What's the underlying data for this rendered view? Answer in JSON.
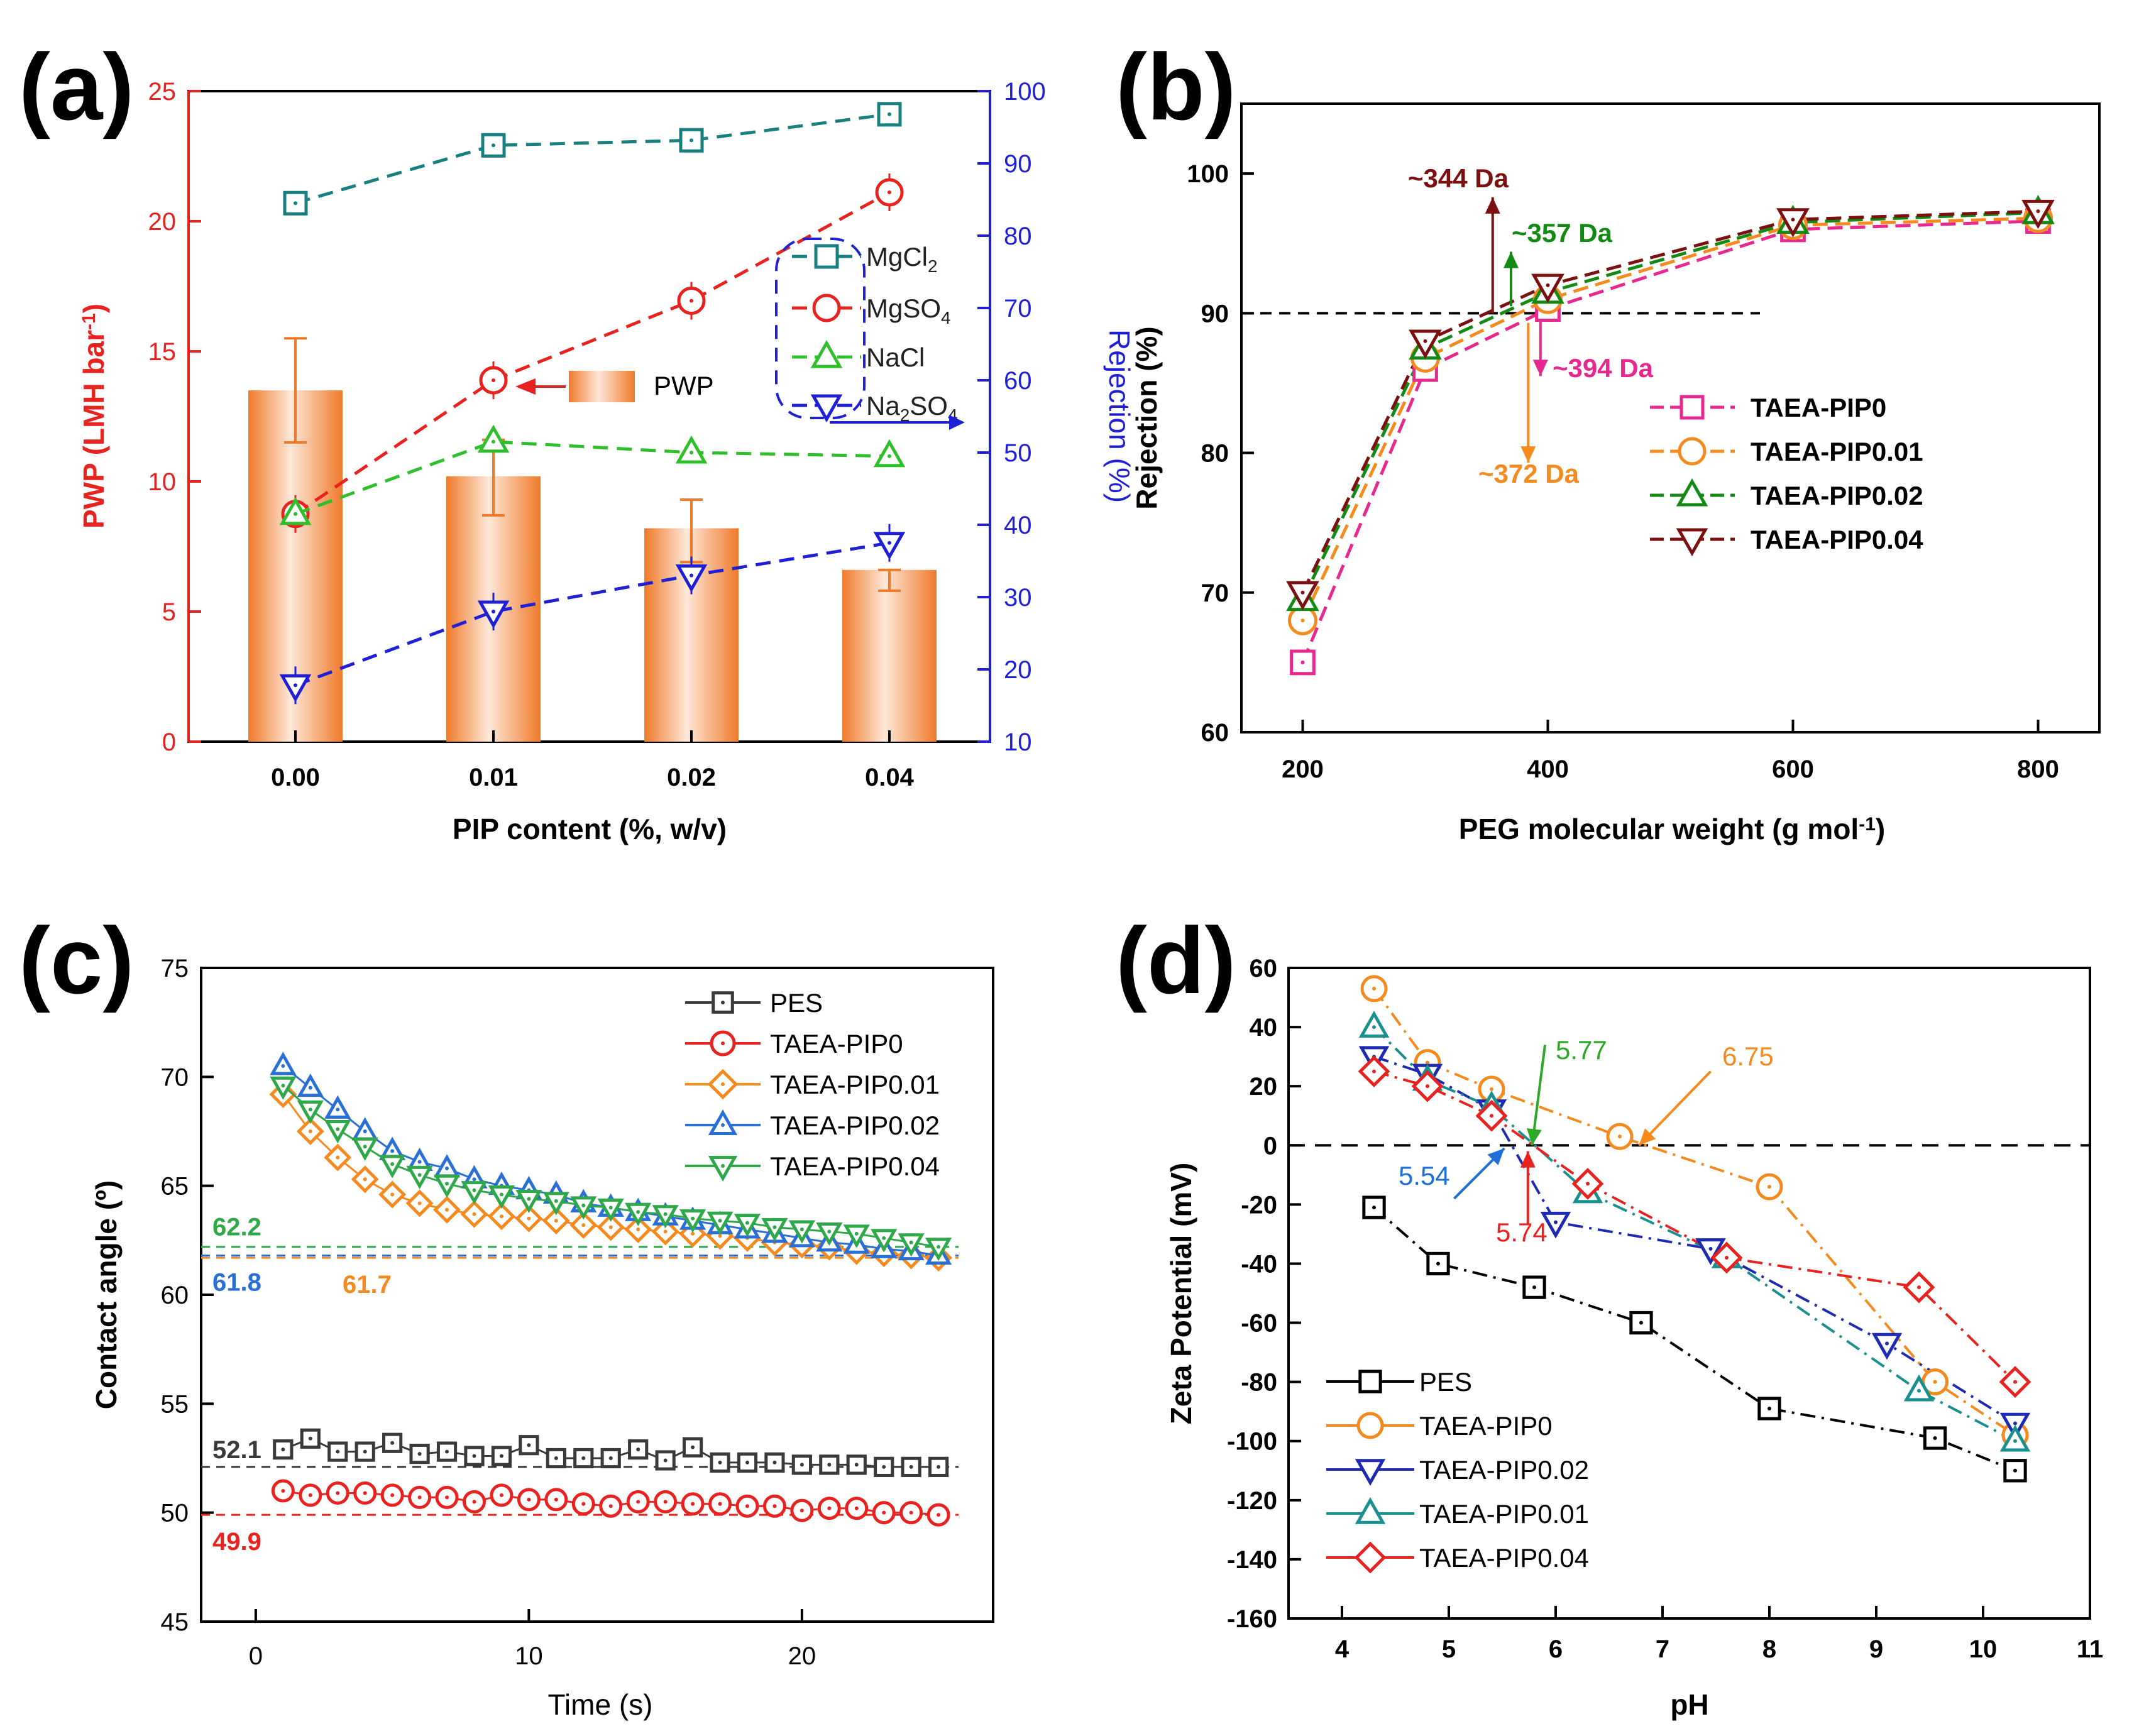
{
  "colors": {
    "black": "#000000",
    "red": "#e8221f",
    "blue": "#1f1fd6",
    "teal": "#1a7f7f",
    "green": "#2fbf2a",
    "orange": "#f58a1f",
    "bar": "#f29a5c",
    "pink": "#e6298f",
    "darkgreen": "#138a13",
    "maroon": "#7a1010",
    "gray": "#3a3a3a",
    "zblue": "#1e2bb0",
    "ablue": "#2a6fd6"
  },
  "chart_data": [
    {
      "panel": "(a)",
      "type": "bar",
      "categories": [
        "0.00",
        "0.01",
        "0.02",
        "0.04"
      ],
      "xlabel": "PIP content (%, w/v)",
      "ylabel": "PWP (LMH bar",
      "ylabel_sup": "-1",
      "ylabel_close": ")",
      "y2label": "Rejection (%)",
      "ylim": [
        0,
        25
      ],
      "yticks": [
        "0",
        "5",
        "10",
        "15",
        "20",
        "25"
      ],
      "y2lim": [
        10,
        100
      ],
      "y2ticks": [
        "10",
        "20",
        "30",
        "40",
        "50",
        "60",
        "70",
        "80",
        "90",
        "100"
      ],
      "bars": {
        "name": "PWP",
        "values": [
          13.5,
          10.2,
          8.2,
          6.6
        ],
        "error_low": [
          11.5,
          8.7,
          6.9,
          5.8
        ],
        "error_high": [
          15.5,
          11.6,
          9.3,
          6.6
        ]
      },
      "series": [
        {
          "name": "MgCl",
          "sub": "2",
          "marker": "square",
          "color": "#1a7f7f",
          "values": [
            84.5,
            92.5,
            93.2,
            96.8
          ]
        },
        {
          "name": "MgSO",
          "sub": "4",
          "marker": "circle",
          "color": "#e8221f",
          "values": [
            41.5,
            60.0,
            71.0,
            86.0
          ]
        },
        {
          "name": "NaCl",
          "sub": "",
          "marker": "triangle-up",
          "color": "#2fbf2a",
          "values": [
            41.5,
            51.5,
            50.0,
            49.5
          ]
        },
        {
          "name": "Na",
          "sub": "2",
          "tail": "SO",
          "tail_sub": "4",
          "marker": "triangle-down",
          "color": "#1f1fd6",
          "values": [
            17.8,
            28.0,
            33.0,
            37.5
          ]
        }
      ]
    },
    {
      "panel": "(b)",
      "type": "line",
      "x": [
        200,
        300,
        400,
        600,
        800
      ],
      "xticks": [
        "200",
        "400",
        "600",
        "800"
      ],
      "xlabel": "PEG molecular weight (g mol",
      "xlabel_sup": "-1",
      "xlabel_close": ")",
      "ylabel": "Rejection (%)",
      "xlim": [
        150,
        850
      ],
      "ylim": [
        60,
        105
      ],
      "yticks": [
        "60",
        "70",
        "80",
        "90",
        "100"
      ],
      "reference_line": 90,
      "series": [
        {
          "name": "TAEA-PIP0",
          "marker": "square",
          "color": "#e6298f",
          "values": [
            65.0,
            86.0,
            90.3,
            96.0,
            96.6
          ]
        },
        {
          "name": "TAEA-PIP0.01",
          "marker": "circle",
          "color": "#f58a1f",
          "values": [
            68.0,
            86.8,
            91.0,
            96.3,
            96.8
          ]
        },
        {
          "name": "TAEA-PIP0.02",
          "marker": "triangle-up",
          "color": "#138a13",
          "values": [
            69.5,
            87.5,
            91.5,
            96.5,
            97.2
          ]
        },
        {
          "name": "TAEA-PIP0.04",
          "marker": "triangle-down",
          "color": "#7a1010",
          "values": [
            70.0,
            88.0,
            92.0,
            96.7,
            97.3
          ]
        }
      ],
      "annotations": [
        {
          "text": "~344 Da",
          "color": "#7a1010",
          "x": 344
        },
        {
          "text": "~357 Da",
          "color": "#138a13",
          "x": 357
        },
        {
          "text": "~394 Da",
          "color": "#e6298f",
          "x": 394
        },
        {
          "text": "~372 Da",
          "color": "#f58a1f",
          "x": 372
        }
      ]
    },
    {
      "panel": "(c)",
      "type": "line",
      "xlabel": "Time (s)",
      "ylabel": "Contact angle (º)",
      "xlim": [
        -2,
        27
      ],
      "xticks": [
        "0",
        "10",
        "20"
      ],
      "ylim": [
        45,
        75
      ],
      "yticks": [
        "45",
        "50",
        "55",
        "60",
        "65",
        "70",
        "75"
      ],
      "series": [
        {
          "name": "PES",
          "marker": "square",
          "color": "#3a3a3a",
          "x": [
            1,
            2,
            3,
            4,
            5,
            6,
            7,
            8,
            9,
            10,
            11,
            12,
            13,
            14,
            15,
            16,
            17,
            18,
            19,
            20,
            21,
            22,
            23,
            24,
            25
          ],
          "values": [
            52.9,
            53.4,
            52.8,
            52.8,
            53.2,
            52.7,
            52.8,
            52.6,
            52.6,
            53.1,
            52.5,
            52.5,
            52.5,
            52.9,
            52.4,
            53.0,
            52.3,
            52.3,
            52.3,
            52.2,
            52.2,
            52.2,
            52.1,
            52.1,
            52.1
          ]
        },
        {
          "name": "TAEA-PIP0",
          "marker": "circle",
          "color": "#e8221f",
          "x": [
            1,
            2,
            3,
            4,
            5,
            6,
            7,
            8,
            9,
            10,
            11,
            12,
            13,
            14,
            15,
            16,
            17,
            18,
            19,
            20,
            21,
            22,
            23,
            24,
            25
          ],
          "values": [
            51.0,
            50.8,
            50.9,
            50.9,
            50.8,
            50.7,
            50.7,
            50.5,
            50.8,
            50.6,
            50.6,
            50.4,
            50.3,
            50.5,
            50.5,
            50.4,
            50.4,
            50.3,
            50.3,
            50.1,
            50.2,
            50.2,
            50.0,
            50.0,
            49.9
          ]
        },
        {
          "name": "TAEA-PIP0.01",
          "marker": "diamond",
          "color": "#f58a1f",
          "x": [
            1,
            2,
            3,
            4,
            5,
            6,
            7,
            8,
            9,
            10,
            11,
            12,
            13,
            14,
            15,
            16,
            17,
            18,
            19,
            20,
            21,
            22,
            23,
            24,
            25
          ],
          "values": [
            69.2,
            67.5,
            66.3,
            65.3,
            64.6,
            64.2,
            63.9,
            63.7,
            63.6,
            63.5,
            63.4,
            63.2,
            63.1,
            63.0,
            62.9,
            62.8,
            62.7,
            62.6,
            62.4,
            62.3,
            62.2,
            62.0,
            61.9,
            61.8,
            61.7
          ]
        },
        {
          "name": "TAEA-PIP0.02",
          "marker": "triangle-up",
          "color": "#2a6fd6",
          "x": [
            1,
            2,
            3,
            4,
            5,
            6,
            7,
            8,
            9,
            10,
            11,
            12,
            13,
            14,
            15,
            16,
            17,
            18,
            19,
            20,
            21,
            22,
            23,
            24,
            25
          ],
          "values": [
            70.5,
            69.5,
            68.5,
            67.5,
            66.6,
            66.1,
            65.8,
            65.3,
            65.0,
            64.8,
            64.6,
            64.2,
            64.0,
            63.8,
            63.6,
            63.4,
            63.2,
            63.0,
            62.8,
            62.6,
            62.4,
            62.3,
            62.1,
            62.0,
            61.8
          ]
        },
        {
          "name": "TAEA-PIP0.04",
          "marker": "triangle-down",
          "color": "#2fa84a",
          "x": [
            1,
            2,
            3,
            4,
            5,
            6,
            7,
            8,
            9,
            10,
            11,
            12,
            13,
            14,
            15,
            16,
            17,
            18,
            19,
            20,
            21,
            22,
            23,
            24,
            25
          ],
          "values": [
            69.6,
            68.5,
            67.6,
            66.8,
            66.0,
            65.5,
            65.1,
            64.8,
            64.6,
            64.4,
            64.3,
            64.1,
            64.0,
            63.8,
            63.7,
            63.5,
            63.4,
            63.3,
            63.1,
            63.0,
            62.9,
            62.8,
            62.6,
            62.4,
            62.2
          ]
        }
      ],
      "reference_lines": [
        {
          "label": "62.2",
          "value": 62.2,
          "color": "#2fa84a"
        },
        {
          "label": "61.8",
          "value": 61.8,
          "color": "#2a6fd6"
        },
        {
          "label": "61.7",
          "value": 61.7,
          "color": "#f58a1f"
        },
        {
          "label": "52.1",
          "value": 52.1,
          "color": "#3a3a3a"
        },
        {
          "label": "49.9",
          "value": 49.9,
          "color": "#e8221f"
        }
      ]
    },
    {
      "panel": "(d)",
      "type": "line",
      "xlabel": "pH",
      "ylabel": "Zeta Potential (mV)",
      "xlim": [
        3.5,
        11
      ],
      "xticks": [
        "4",
        "5",
        "6",
        "7",
        "8",
        "9",
        "10",
        "11"
      ],
      "ylim": [
        -160,
        60
      ],
      "yticks": [
        "-160",
        "-140",
        "-120",
        "-100",
        "-80",
        "-60",
        "-40",
        "-20",
        "0",
        "20",
        "40",
        "60"
      ],
      "series": [
        {
          "name": "PES",
          "marker": "square",
          "color": "#000000",
          "x": [
            4.3,
            4.9,
            5.8,
            6.8,
            8.0,
            9.55,
            10.3
          ],
          "values": [
            -21,
            -40,
            -48,
            -60,
            -89,
            -99,
            -110
          ]
        },
        {
          "name": "TAEA-PIP0",
          "marker": "circle",
          "color": "#f58a1f",
          "x": [
            4.3,
            4.8,
            5.4,
            6.6,
            8.0,
            9.55,
            10.3
          ],
          "values": [
            53,
            28,
            19,
            3,
            -14,
            -80,
            -98
          ]
        },
        {
          "name": "TAEA-PIP0.02",
          "marker": "triangle-down",
          "color": "#1e2bb0",
          "x": [
            4.3,
            4.8,
            5.4,
            6.0,
            7.45,
            9.1,
            10.3
          ],
          "values": [
            30,
            24,
            12,
            -26,
            -35,
            -67,
            -94
          ]
        },
        {
          "name": "TAEA-PIP0.01",
          "marker": "triangle-up",
          "color": "#1a8f8f",
          "x": [
            4.3,
            4.8,
            5.4,
            6.3,
            7.6,
            9.4,
            10.3
          ],
          "values": [
            40,
            22,
            13,
            -16,
            -38,
            -83,
            -100
          ]
        },
        {
          "name": "TAEA-PIP0.04",
          "marker": "diamond",
          "color": "#e8221f",
          "x": [
            4.3,
            4.8,
            5.4,
            6.3,
            7.6,
            9.4,
            10.3
          ],
          "values": [
            25,
            20,
            10,
            -13,
            -38,
            -48,
            -80
          ]
        }
      ],
      "annotations": [
        {
          "text": "5.77",
          "color": "#2fa82a",
          "x": 5.77
        },
        {
          "text": "6.75",
          "color": "#f58a1f",
          "x": 6.75
        },
        {
          "text": "5.54",
          "color": "#1e6fd6",
          "x": 5.54
        },
        {
          "text": "5.74",
          "color": "#e8221f",
          "x": 5.74
        }
      ]
    }
  ]
}
